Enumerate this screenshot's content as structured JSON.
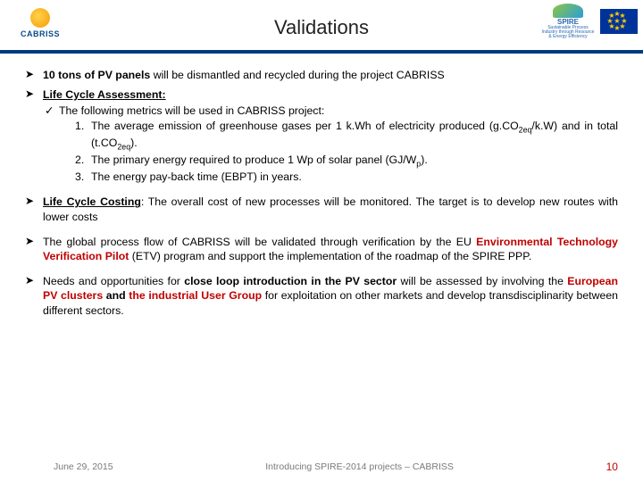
{
  "header": {
    "logo_left_text": "CABRISS",
    "title": "Validations",
    "spire_label": "SPIRE",
    "spire_sub": "Sustainable Process Industry through Resource & Energy Efficiency"
  },
  "bullets": {
    "b1_prefix": "10 tons of PV panels",
    "b1_rest": " will be dismantled and recycled during the project CABRISS",
    "b2_head": "Life Cycle Assessment:",
    "b2_sub_intro": "The following metrics will be used in CABRISS project:",
    "b2_1_a": "The average emission of greenhouse gases per 1 k.Wh of electricity produced (g.CO",
    "b2_1_b": "/k.W) and in total (t.CO",
    "b2_1_c": ").",
    "b2_sub_2eq": "2eq",
    "b2_2_a": "The primary energy required to produce 1 Wp of solar panel (GJ/W",
    "b2_2_p": "p",
    "b2_2_b": ").",
    "b2_3": "The energy pay-back time (EBPT) in years.",
    "b3_head": "Life Cycle Costing",
    "b3_rest": ": The overall cost of new processes will be monitored. The target is to develop new routes with lower costs",
    "b4_a": "The global process flow of CABRISS will be validated through verification by the EU ",
    "b4_red": "Environmental Technology Verification Pilot",
    "b4_b": " (ETV) program and support the implementation of the roadmap of the SPIRE PPP.",
    "b5_a": "Needs and opportunities for ",
    "b5_bold1": "close loop introduction in the PV sector",
    "b5_b": " will be assessed by involving the ",
    "b5_red1": "European PV clusters",
    "b5_c": " and ",
    "b5_red2": "the industrial User Group",
    "b5_d": " for exploitation on other markets and develop transdisciplinarity between different sectors."
  },
  "footer": {
    "date": "June 29, 2015",
    "center": "Introducing SPIRE-2014 projects – CABRISS",
    "page": "10"
  }
}
